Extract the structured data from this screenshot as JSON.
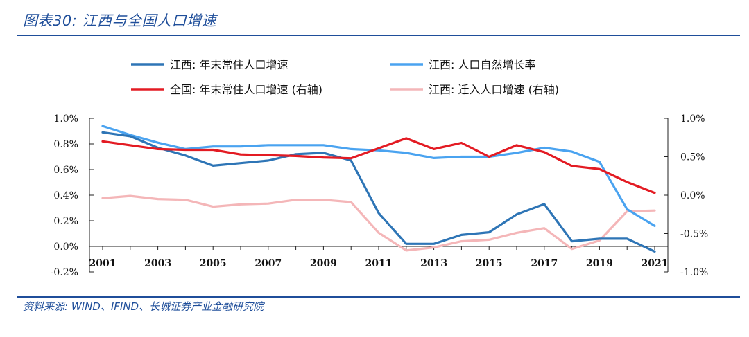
{
  "header": {
    "title": "图表30:  江西与全国人口增速"
  },
  "footer": {
    "source": "资料来源:  WIND、IFIND、长城证券产业金融研究院"
  },
  "colors": {
    "jx_resident": "#2e75b6",
    "jx_natural": "#4aa3f0",
    "national": "#e31b23",
    "jx_migration": "#f4b6b8",
    "title": "#1f4e9a"
  },
  "chart_data": {
    "type": "line",
    "title": "江西与全国人口增速",
    "x": [
      "2001",
      "2002",
      "2003",
      "2004",
      "2005",
      "2006",
      "2007",
      "2008",
      "2009",
      "2010",
      "2011",
      "2012",
      "2013",
      "2014",
      "2015",
      "2016",
      "2017",
      "2018",
      "2019",
      "2020",
      "2021"
    ],
    "x_tick_labels": [
      "2001",
      "2003",
      "2005",
      "2007",
      "2009",
      "2011",
      "2013",
      "2015",
      "2017",
      "2019",
      "2021"
    ],
    "left_axis": {
      "ylim": [
        -0.2,
        1.0
      ],
      "ticks": [
        "1.0%",
        "0.8%",
        "0.6%",
        "0.4%",
        "0.2%",
        "0.0%",
        "-0.2%"
      ]
    },
    "right_axis": {
      "ylim": [
        -1.0,
        1.0
      ],
      "ticks": [
        "1.0%",
        "0.5%",
        "0.0%",
        "-0.5%",
        "-1.0%"
      ]
    },
    "series": [
      {
        "name": "江西: 年末常住人口增速",
        "axis": "left",
        "color_key": "jx_resident",
        "values": [
          0.89,
          0.86,
          0.77,
          0.71,
          0.63,
          0.65,
          0.67,
          0.72,
          0.73,
          0.67,
          0.26,
          0.02,
          0.02,
          0.09,
          0.11,
          0.25,
          0.33,
          0.04,
          0.06,
          0.06,
          -0.04
        ]
      },
      {
        "name": "江西: 人口自然增长率",
        "axis": "left",
        "color_key": "jx_natural",
        "values": [
          0.94,
          0.87,
          0.81,
          0.76,
          0.78,
          0.78,
          0.79,
          0.79,
          0.79,
          0.76,
          0.75,
          0.73,
          0.69,
          0.7,
          0.7,
          0.73,
          0.77,
          0.74,
          0.66,
          0.29,
          0.16
        ]
      },
      {
        "name": "全国: 年末常住人口增速 (右轴)",
        "axis": "right",
        "color_key": "national",
        "values": [
          0.7,
          0.65,
          0.6,
          0.59,
          0.59,
          0.53,
          0.52,
          0.51,
          0.49,
          0.48,
          0.61,
          0.74,
          0.6,
          0.68,
          0.5,
          0.65,
          0.56,
          0.38,
          0.34,
          0.17,
          0.03
        ]
      },
      {
        "name": "江西: 迁入人口增速 (右轴)",
        "axis": "right",
        "color_key": "jx_migration",
        "values": [
          -0.04,
          -0.01,
          -0.05,
          -0.06,
          -0.15,
          -0.12,
          -0.11,
          -0.06,
          -0.06,
          -0.09,
          -0.49,
          -0.72,
          -0.68,
          -0.6,
          -0.58,
          -0.49,
          -0.43,
          -0.7,
          -0.59,
          -0.21,
          -0.2
        ]
      }
    ],
    "legend_position": "top"
  }
}
